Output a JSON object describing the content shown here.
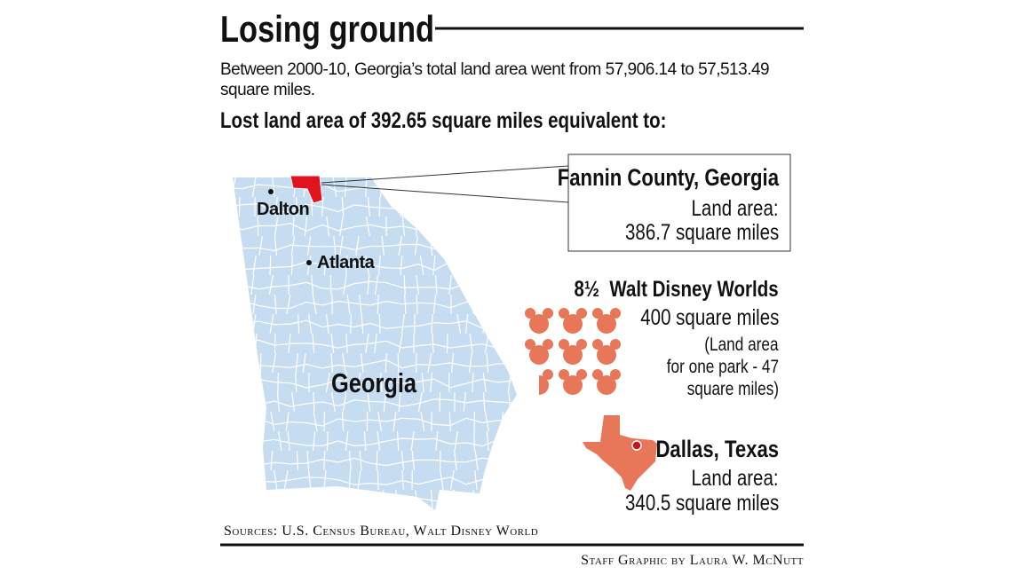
{
  "header": {
    "title": "Losing ground",
    "subtitle": "Between 2000-10, Georgia’s total land area went from 57,906.14 to 57,513.49 square miles.",
    "heading": "Lost land area of 392.65 square miles equivalent to:"
  },
  "map": {
    "labels": [
      "Dalton",
      "Atlanta",
      "Georgia"
    ]
  },
  "fannin": {
    "title": "Fannin County, Georgia",
    "lines": [
      "Land area:",
      "386.7 square miles"
    ]
  },
  "disney": {
    "title": "8½  Walt Disney Worlds",
    "lines": [
      "400 square miles",
      "(Land area",
      "for one park - 47",
      "square miles)"
    ]
  },
  "dallas": {
    "title": "Dallas, Texas",
    "lines": [
      "Land area:",
      "340.5 square miles"
    ]
  },
  "footer": {
    "sources": "Sources: U.S. Census Bureau, Walt Disney World",
    "credit": "Staff Graphic by Laura W. McNutt"
  }
}
